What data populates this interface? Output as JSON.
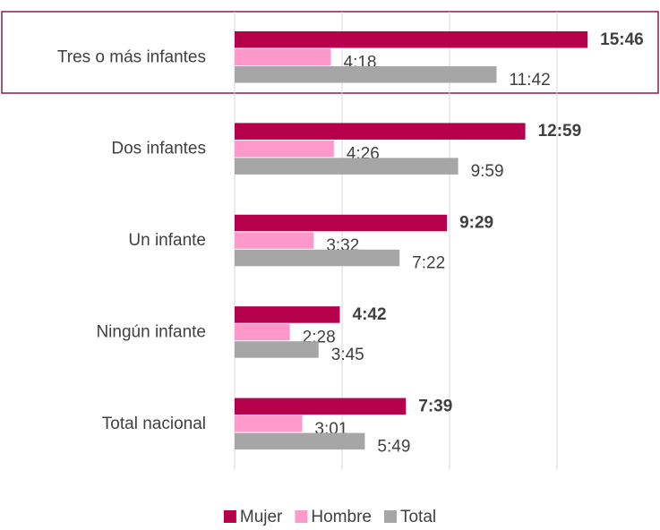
{
  "chart_data": {
    "type": "bar",
    "orientation": "horizontal",
    "categories": [
      "Tres o más infantes",
      "Dos infantes",
      "Un infante",
      "Ningún infante",
      "Total nacional"
    ],
    "series": [
      {
        "name": "Mujer",
        "color": "#b5004b",
        "values": [
          15.7667,
          12.9833,
          9.4833,
          4.7,
          7.65
        ],
        "value_labels": [
          "15:46",
          "12:59",
          "9:29",
          "4:42",
          "7:39"
        ],
        "bold_labels": true
      },
      {
        "name": "Hombre",
        "color": "#ff99cc",
        "values": [
          4.3,
          4.4333,
          3.5333,
          2.4667,
          3.0167
        ],
        "value_labels": [
          "4:18",
          "4:26",
          "3:32",
          "2:28",
          "3:01"
        ]
      },
      {
        "name": "Total",
        "color": "#a6a6a6",
        "values": [
          11.7,
          9.9833,
          7.3667,
          3.75,
          5.8167
        ],
        "value_labels": [
          "11:42",
          "9:59",
          "7:22",
          "3:45",
          "5:49"
        ]
      }
    ],
    "xlim": [
      0,
      18.8
    ],
    "xticks": [
      0,
      4.8,
      9.6,
      14.4
    ],
    "grid": true,
    "legend": "bottom"
  }
}
